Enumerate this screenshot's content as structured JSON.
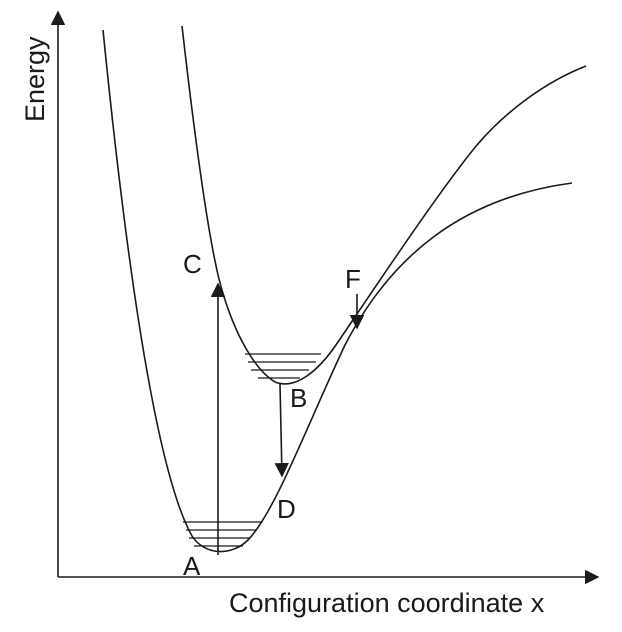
{
  "axes": {
    "x_label": "Configuration coordinate x",
    "y_label": "Energy"
  },
  "points": {
    "A": "A",
    "B": "B",
    "C": "C",
    "D": "D",
    "F": "F"
  },
  "colors": {
    "ink": "#1a1a1a",
    "background": "#ffffff"
  }
}
